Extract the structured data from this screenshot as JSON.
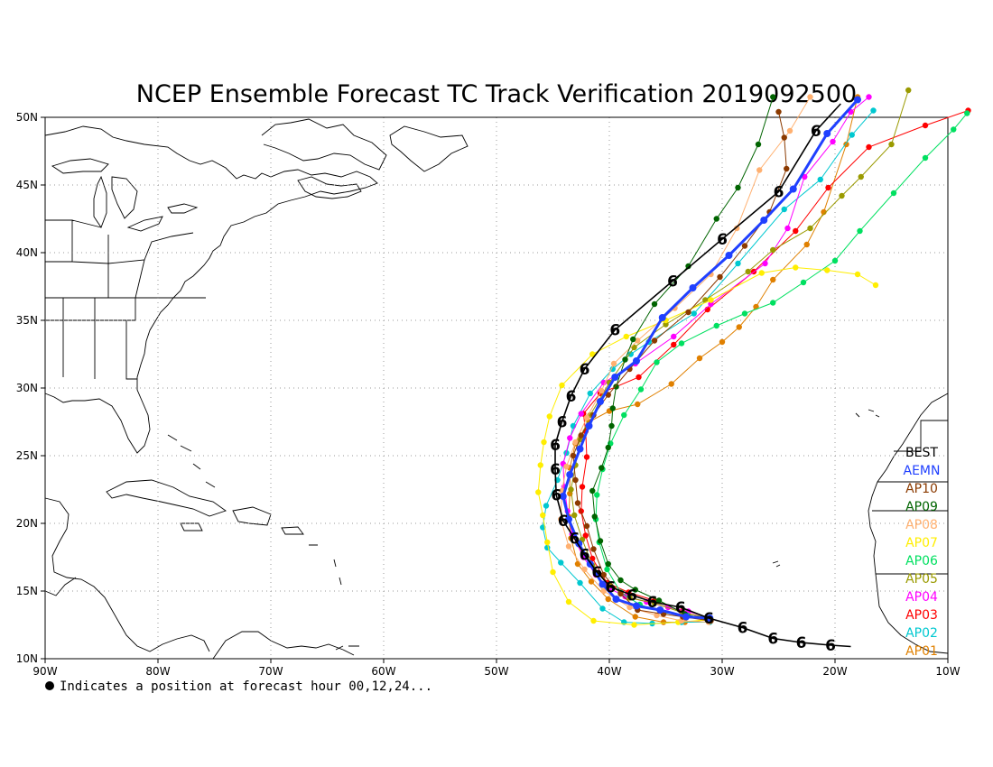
{
  "title": "NCEP Ensemble Forecast TC Track Verification 2019092500",
  "footnote": "Indicates a position at forecast hour 00,12,24...",
  "map": {
    "lon_range": [
      -90,
      -10
    ],
    "lat_range": [
      10,
      50
    ],
    "grid": "dotted",
    "x_ticks": [
      {
        "lon": -90,
        "label": "90W"
      },
      {
        "lon": -80,
        "label": "80W"
      },
      {
        "lon": -70,
        "label": "70W"
      },
      {
        "lon": -60,
        "label": "60W"
      },
      {
        "lon": -50,
        "label": "50W"
      },
      {
        "lon": -40,
        "label": "40W"
      },
      {
        "lon": -30,
        "label": "30W"
      },
      {
        "lon": -20,
        "label": "20W"
      },
      {
        "lon": -10,
        "label": "10W"
      }
    ],
    "y_ticks": [
      {
        "lat": 10,
        "label": "10N"
      },
      {
        "lat": 15,
        "label": "15N"
      },
      {
        "lat": 20,
        "label": "20N"
      },
      {
        "lat": 25,
        "label": "25N"
      },
      {
        "lat": 30,
        "label": "30N"
      },
      {
        "lat": 35,
        "label": "35N"
      },
      {
        "lat": 40,
        "label": "40N"
      },
      {
        "lat": 45,
        "label": "45N"
      },
      {
        "lat": 50,
        "label": "50N"
      }
    ]
  },
  "legend": [
    {
      "label": "BEST",
      "color": "#000000"
    },
    {
      "label": "AEMN",
      "color": "#2040ff"
    },
    {
      "label": "AP10",
      "color": "#8b3a00"
    },
    {
      "label": "AP09",
      "color": "#006400"
    },
    {
      "label": "AP08",
      "color": "#ffb070"
    },
    {
      "label": "AP07",
      "color": "#ffee00"
    },
    {
      "label": "AP06",
      "color": "#00e060"
    },
    {
      "label": "AP05",
      "color": "#9a9a00"
    },
    {
      "label": "AP04",
      "color": "#ff00ff"
    },
    {
      "label": "AP03",
      "color": "#ff0000"
    },
    {
      "label": "AP02",
      "color": "#00c8d0"
    },
    {
      "label": "AP01",
      "color": "#e08000"
    }
  ],
  "tracks": [
    {
      "name": "BEST",
      "color": "#000000",
      "points": [
        [
          -18.6,
          10.9
        ],
        [
          -20.4,
          11.0
        ],
        [
          -23.0,
          11.2
        ],
        [
          -25.5,
          11.5
        ],
        [
          -28.2,
          12.3
        ],
        [
          -31.2,
          13.0
        ],
        [
          -33.7,
          13.8
        ],
        [
          -36.2,
          14.2
        ],
        [
          -38.0,
          14.7
        ],
        [
          -39.9,
          15.3
        ],
        [
          -41.1,
          16.4
        ],
        [
          -42.2,
          17.7
        ],
        [
          -43.1,
          18.9
        ],
        [
          -44.1,
          20.2
        ],
        [
          -44.7,
          22.1
        ],
        [
          -44.8,
          24.0
        ],
        [
          -44.8,
          25.8
        ],
        [
          -44.2,
          27.5
        ],
        [
          -43.4,
          29.4
        ],
        [
          -42.2,
          31.4
        ],
        [
          -39.5,
          34.3
        ],
        [
          -34.4,
          37.9
        ],
        [
          -30.0,
          41.0
        ],
        [
          -25.0,
          44.5
        ],
        [
          -21.7,
          49.0
        ],
        [
          -19.5,
          51.0
        ]
      ]
    },
    {
      "name": "AEMN",
      "color": "#2040ff",
      "points": [
        [
          -31.1,
          13.0
        ],
        [
          -33.2,
          13.1
        ],
        [
          -35.5,
          13.6
        ],
        [
          -37.6,
          13.9
        ],
        [
          -39.4,
          14.4
        ],
        [
          -40.6,
          15.5
        ],
        [
          -41.7,
          17.0
        ],
        [
          -42.7,
          18.5
        ],
        [
          -43.6,
          20.3
        ],
        [
          -44.1,
          22.0
        ],
        [
          -43.5,
          23.6
        ],
        [
          -42.6,
          25.5
        ],
        [
          -41.8,
          27.2
        ],
        [
          -40.8,
          29.0
        ],
        [
          -39.5,
          30.8
        ],
        [
          -37.6,
          32.0
        ],
        [
          -35.3,
          35.2
        ],
        [
          -32.6,
          37.4
        ],
        [
          -29.4,
          39.8
        ],
        [
          -26.3,
          42.4
        ],
        [
          -23.7,
          44.7
        ],
        [
          -20.7,
          48.8
        ],
        [
          -18.0,
          51.3
        ]
      ]
    },
    {
      "name": "AP10",
      "color": "#8b3a00",
      "points": [
        [
          -31.0,
          12.8
        ],
        [
          -33.5,
          13.1
        ],
        [
          -35.2,
          13.3
        ],
        [
          -37.5,
          13.6
        ],
        [
          -39.0,
          14.8
        ],
        [
          -40.5,
          16.2
        ],
        [
          -41.4,
          18.1
        ],
        [
          -42.0,
          19.8
        ],
        [
          -42.8,
          21.5
        ],
        [
          -43.0,
          23.2
        ],
        [
          -43.2,
          25.0
        ],
        [
          -42.5,
          26.5
        ],
        [
          -41.4,
          28.0
        ],
        [
          -40.1,
          29.5
        ],
        [
          -38.2,
          31.4
        ],
        [
          -36.0,
          33.5
        ],
        [
          -33.0,
          35.6
        ],
        [
          -30.2,
          38.2
        ],
        [
          -28.0,
          40.5
        ],
        [
          -25.8,
          43.0
        ],
        [
          -24.3,
          46.2
        ],
        [
          -24.5,
          48.5
        ],
        [
          -25.0,
          50.4
        ]
      ]
    },
    {
      "name": "AP09",
      "color": "#006400",
      "points": [
        [
          -31.1,
          12.8
        ],
        [
          -33.3,
          13.3
        ],
        [
          -35.6,
          14.3
        ],
        [
          -37.7,
          15.1
        ],
        [
          -39.0,
          15.8
        ],
        [
          -40.1,
          17.0
        ],
        [
          -40.8,
          18.7
        ],
        [
          -41.3,
          20.5
        ],
        [
          -41.5,
          22.4
        ],
        [
          -40.7,
          24.1
        ],
        [
          -40.1,
          25.6
        ],
        [
          -39.8,
          27.2
        ],
        [
          -39.7,
          28.5
        ],
        [
          -39.4,
          30.1
        ],
        [
          -38.6,
          32.1
        ],
        [
          -37.9,
          33.6
        ],
        [
          -36.0,
          36.2
        ],
        [
          -33.0,
          39.0
        ],
        [
          -30.5,
          42.5
        ],
        [
          -28.6,
          44.8
        ],
        [
          -26.8,
          48.0
        ],
        [
          -25.5,
          51.5
        ]
      ]
    },
    {
      "name": "AP08",
      "color": "#ffb070",
      "points": [
        [
          -31.2,
          12.7
        ],
        [
          -33.6,
          12.8
        ],
        [
          -35.8,
          13.2
        ],
        [
          -38.2,
          13.8
        ],
        [
          -40.5,
          15.0
        ],
        [
          -42.2,
          16.6
        ],
        [
          -43.6,
          18.3
        ],
        [
          -44.3,
          20.3
        ],
        [
          -44.2,
          22.4
        ],
        [
          -43.8,
          24.2
        ],
        [
          -43.0,
          26.0
        ],
        [
          -42.0,
          27.8
        ],
        [
          -40.7,
          29.8
        ],
        [
          -39.6,
          31.8
        ],
        [
          -37.5,
          33.5
        ],
        [
          -34.2,
          35.9
        ],
        [
          -31.0,
          38.4
        ],
        [
          -28.7,
          41.8
        ],
        [
          -26.7,
          46.1
        ],
        [
          -24.0,
          49.0
        ],
        [
          -22.2,
          51.5
        ]
      ]
    },
    {
      "name": "AP07",
      "color": "#ffee00",
      "points": [
        [
          -31.0,
          12.9
        ],
        [
          -33.9,
          12.7
        ],
        [
          -37.8,
          12.5
        ],
        [
          -41.4,
          12.8
        ],
        [
          -43.6,
          14.2
        ],
        [
          -45.0,
          16.4
        ],
        [
          -45.5,
          18.6
        ],
        [
          -45.9,
          20.6
        ],
        [
          -46.3,
          22.3
        ],
        [
          -46.1,
          24.3
        ],
        [
          -45.8,
          26.0
        ],
        [
          -45.3,
          27.9
        ],
        [
          -44.2,
          30.2
        ],
        [
          -41.5,
          32.5
        ],
        [
          -38.5,
          33.8
        ],
        [
          -35.0,
          35.0
        ],
        [
          -31.0,
          36.5
        ],
        [
          -26.5,
          38.5
        ],
        [
          -23.5,
          38.9
        ],
        [
          -20.7,
          38.7
        ],
        [
          -18.0,
          38.4
        ],
        [
          -16.4,
          37.6
        ]
      ]
    },
    {
      "name": "AP06",
      "color": "#00e060",
      "points": [
        [
          -31.1,
          12.9
        ],
        [
          -33.1,
          13.2
        ],
        [
          -35.2,
          13.4
        ],
        [
          -37.3,
          14.0
        ],
        [
          -39.0,
          14.9
        ],
        [
          -40.2,
          16.6
        ],
        [
          -40.9,
          18.6
        ],
        [
          -41.2,
          20.3
        ],
        [
          -41.1,
          22.1
        ],
        [
          -40.6,
          24.0
        ],
        [
          -39.9,
          25.9
        ],
        [
          -38.7,
          28.0
        ],
        [
          -37.2,
          29.9
        ],
        [
          -35.8,
          31.9
        ],
        [
          -33.6,
          33.3
        ],
        [
          -30.5,
          34.6
        ],
        [
          -28.0,
          35.5
        ],
        [
          -25.5,
          36.3
        ],
        [
          -22.8,
          37.8
        ],
        [
          -20.0,
          39.4
        ],
        [
          -17.8,
          41.6
        ],
        [
          -14.8,
          44.4
        ],
        [
          -12.0,
          47.0
        ],
        [
          -9.5,
          49.1
        ],
        [
          -8.3,
          50.3
        ]
      ]
    },
    {
      "name": "AP05",
      "color": "#9a9a00",
      "points": [
        [
          -31.1,
          13.0
        ],
        [
          -33.5,
          13.4
        ],
        [
          -36.0,
          14.1
        ],
        [
          -38.2,
          14.5
        ],
        [
          -40.0,
          15.4
        ],
        [
          -41.5,
          16.9
        ],
        [
          -42.4,
          18.8
        ],
        [
          -43.1,
          20.6
        ],
        [
          -43.4,
          22.5
        ],
        [
          -43.0,
          24.3
        ],
        [
          -42.6,
          26.2
        ],
        [
          -41.7,
          28.0
        ],
        [
          -40.0,
          30.4
        ],
        [
          -37.8,
          33.0
        ],
        [
          -35.0,
          34.7
        ],
        [
          -31.5,
          36.5
        ],
        [
          -27.7,
          38.6
        ],
        [
          -25.5,
          40.2
        ],
        [
          -22.2,
          41.8
        ],
        [
          -19.4,
          44.2
        ],
        [
          -17.7,
          45.6
        ],
        [
          -15.0,
          48.0
        ],
        [
          -13.5,
          52.0
        ]
      ]
    },
    {
      "name": "AP04",
      "color": "#ff00ff",
      "points": [
        [
          -31.1,
          13.0
        ],
        [
          -33.0,
          13.5
        ],
        [
          -34.8,
          13.8
        ],
        [
          -36.7,
          14.2
        ],
        [
          -38.6,
          14.6
        ],
        [
          -40.0,
          15.2
        ],
        [
          -41.2,
          16.2
        ],
        [
          -42.3,
          17.5
        ],
        [
          -43.3,
          19.2
        ],
        [
          -43.7,
          20.9
        ],
        [
          -44.0,
          22.7
        ],
        [
          -44.1,
          24.4
        ],
        [
          -43.5,
          26.3
        ],
        [
          -42.5,
          28.1
        ],
        [
          -40.5,
          30.4
        ],
        [
          -37.7,
          31.8
        ],
        [
          -34.3,
          33.8
        ],
        [
          -31.0,
          36.2
        ],
        [
          -26.2,
          39.2
        ],
        [
          -24.2,
          41.8
        ],
        [
          -22.7,
          45.6
        ],
        [
          -20.2,
          48.2
        ],
        [
          -18.6,
          50.4
        ],
        [
          -17.0,
          51.5
        ]
      ]
    },
    {
      "name": "AP03",
      "color": "#ff0000",
      "points": [
        [
          -31.1,
          12.9
        ],
        [
          -33.6,
          13.5
        ],
        [
          -36.0,
          14.3
        ],
        [
          -38.3,
          14.9
        ],
        [
          -40.2,
          15.6
        ],
        [
          -41.5,
          17.4
        ],
        [
          -42.1,
          19.1
        ],
        [
          -42.5,
          20.9
        ],
        [
          -42.4,
          22.7
        ],
        [
          -42.0,
          24.9
        ],
        [
          -42.1,
          26.8
        ],
        [
          -42.3,
          28.1
        ],
        [
          -40.8,
          29.6
        ],
        [
          -37.4,
          30.8
        ],
        [
          -34.3,
          33.2
        ],
        [
          -31.3,
          35.8
        ],
        [
          -27.2,
          38.6
        ],
        [
          -23.5,
          41.6
        ],
        [
          -20.6,
          44.8
        ],
        [
          -17.0,
          47.8
        ],
        [
          -12.0,
          49.4
        ],
        [
          -8.2,
          50.5
        ]
      ]
    },
    {
      "name": "AP02",
      "color": "#00c8d0",
      "points": [
        [
          -31.1,
          12.7
        ],
        [
          -33.6,
          12.7
        ],
        [
          -36.2,
          12.6
        ],
        [
          -38.7,
          12.7
        ],
        [
          -40.6,
          13.7
        ],
        [
          -42.6,
          15.6
        ],
        [
          -44.3,
          17.1
        ],
        [
          -45.5,
          18.2
        ],
        [
          -45.9,
          19.7
        ],
        [
          -45.6,
          21.3
        ],
        [
          -44.6,
          23.2
        ],
        [
          -43.8,
          25.2
        ],
        [
          -43.2,
          27.2
        ],
        [
          -41.7,
          29.6
        ],
        [
          -39.7,
          31.4
        ],
        [
          -38.1,
          32.5
        ],
        [
          -36.5,
          33.4
        ],
        [
          -32.5,
          35.5
        ],
        [
          -28.6,
          39.2
        ],
        [
          -24.5,
          43.2
        ],
        [
          -21.3,
          45.4
        ],
        [
          -18.5,
          48.7
        ],
        [
          -16.6,
          50.5
        ]
      ]
    },
    {
      "name": "AP01",
      "color": "#e08000",
      "points": [
        [
          -31.0,
          12.9
        ],
        [
          -33.3,
          12.7
        ],
        [
          -35.2,
          12.7
        ],
        [
          -37.7,
          13.1
        ],
        [
          -40.1,
          14.4
        ],
        [
          -41.6,
          15.7
        ],
        [
          -42.8,
          17.0
        ],
        [
          -43.4,
          18.9
        ],
        [
          -43.6,
          20.5
        ],
        [
          -43.5,
          22.2
        ],
        [
          -43.5,
          24.1
        ],
        [
          -43.0,
          25.9
        ],
        [
          -41.8,
          27.5
        ],
        [
          -40.0,
          28.3
        ],
        [
          -37.5,
          28.8
        ],
        [
          -34.5,
          30.3
        ],
        [
          -32.0,
          32.2
        ],
        [
          -30.0,
          33.4
        ],
        [
          -28.5,
          34.5
        ],
        [
          -27.0,
          36.0
        ],
        [
          -25.5,
          38.0
        ],
        [
          -22.5,
          40.6
        ],
        [
          -21.0,
          43.0
        ],
        [
          -19.0,
          48.0
        ],
        [
          -18.0,
          51.5
        ]
      ]
    }
  ]
}
